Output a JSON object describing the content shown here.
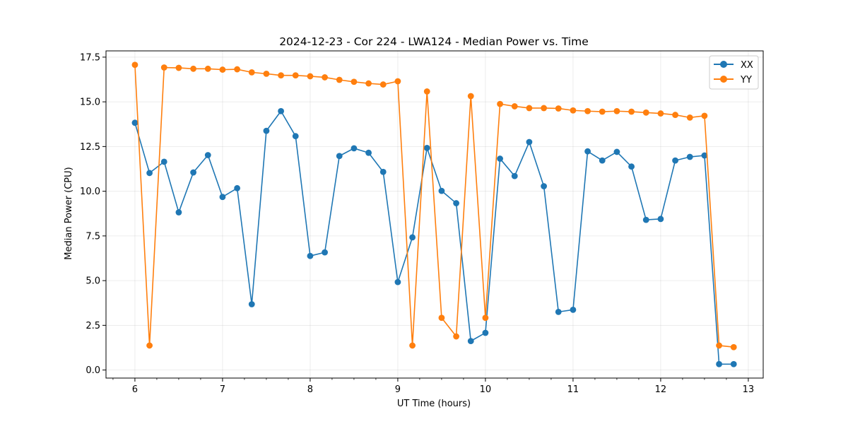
{
  "chart_data": {
    "type": "line",
    "title": "2024-12-23 - Cor 224 - LWA124 - Median Power vs. Time",
    "xlabel": "UT Time (hours)",
    "ylabel": "Median Power (CPU)",
    "xlim": [
      5.67,
      13.17
    ],
    "ylim": [
      -0.45,
      17.85
    ],
    "xticks": [
      6,
      7,
      8,
      9,
      10,
      11,
      12,
      13
    ],
    "xtick_labels": [
      "6",
      "7",
      "8",
      "9",
      "10",
      "11",
      "12",
      "13"
    ],
    "yticks": [
      0,
      2.5,
      5,
      7.5,
      10,
      12.5,
      15,
      17.5
    ],
    "ytick_labels": [
      "0.0",
      "2.5",
      "5.0",
      "7.5",
      "10.0",
      "12.5",
      "15.0",
      "17.5"
    ],
    "grid": true,
    "legend_position": "top-right",
    "x": [
      6.0,
      6.1667,
      6.3333,
      6.5,
      6.6667,
      6.8333,
      7.0,
      7.1667,
      7.3333,
      7.5,
      7.6667,
      7.8333,
      8.0,
      8.1667,
      8.3333,
      8.5,
      8.6667,
      8.8333,
      9.0,
      9.1667,
      9.3333,
      9.5,
      9.6667,
      9.8333,
      10.0,
      10.1667,
      10.3333,
      10.5,
      10.6667,
      10.8333,
      11.0,
      11.1667,
      11.3333,
      11.5,
      11.6667,
      11.8333,
      12.0,
      12.1667,
      12.3333,
      12.5,
      12.6667,
      12.8333
    ],
    "series": [
      {
        "name": "XX",
        "color": "#1f77b4",
        "values": [
          13.83,
          11.02,
          11.65,
          8.82,
          11.05,
          12.02,
          9.68,
          10.17,
          3.68,
          13.38,
          14.48,
          13.08,
          6.38,
          6.58,
          11.97,
          12.4,
          12.15,
          11.08,
          4.92,
          7.42,
          12.42,
          10.02,
          9.33,
          1.62,
          2.08,
          11.82,
          10.85,
          12.75,
          10.28,
          3.25,
          3.37,
          12.23,
          11.72,
          12.2,
          11.38,
          8.4,
          8.45,
          11.72,
          11.92,
          12.0,
          0.33,
          0.33
        ]
      },
      {
        "name": "YY",
        "color": "#ff7f0e",
        "values": [
          17.07,
          1.37,
          16.92,
          16.9,
          16.85,
          16.85,
          16.8,
          16.82,
          16.65,
          16.57,
          16.48,
          16.48,
          16.43,
          16.37,
          16.23,
          16.12,
          16.03,
          15.97,
          16.15,
          1.37,
          15.58,
          2.92,
          1.88,
          15.32,
          2.92,
          14.88,
          14.75,
          14.65,
          14.65,
          14.63,
          14.52,
          14.48,
          14.45,
          14.48,
          14.45,
          14.4,
          14.35,
          14.27,
          14.12,
          14.22,
          1.37,
          1.28
        ]
      }
    ]
  }
}
